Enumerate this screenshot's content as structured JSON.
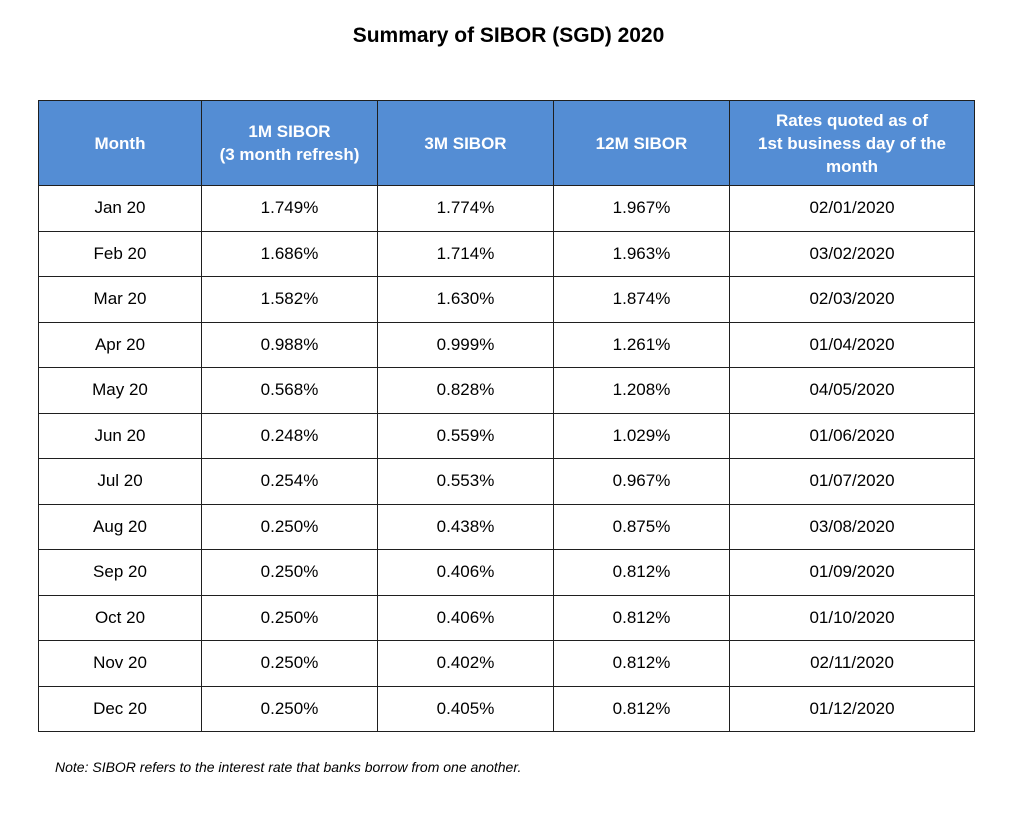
{
  "title": "Summary of SIBOR (SGD) 2020",
  "table": {
    "headers": [
      "Month",
      "1M SIBOR\n(3 month refresh)",
      "3M SIBOR",
      "12M SIBOR",
      "Rates quoted as of\n1st business day of the\nmonth"
    ],
    "rows": [
      [
        "Jan 20",
        "1.749%",
        "1.774%",
        "1.967%",
        "02/01/2020"
      ],
      [
        "Feb 20",
        "1.686%",
        "1.714%",
        "1.963%",
        "03/02/2020"
      ],
      [
        "Mar 20",
        "1.582%",
        "1.630%",
        "1.874%",
        "02/03/2020"
      ],
      [
        "Apr 20",
        "0.988%",
        "0.999%",
        "1.261%",
        "01/04/2020"
      ],
      [
        "May 20",
        "0.568%",
        "0.828%",
        "1.208%",
        "04/05/2020"
      ],
      [
        "Jun 20",
        "0.248%",
        "0.559%",
        "1.029%",
        "01/06/2020"
      ],
      [
        "Jul 20",
        "0.254%",
        "0.553%",
        "0.967%",
        "01/07/2020"
      ],
      [
        "Aug 20",
        "0.250%",
        "0.438%",
        "0.875%",
        "03/08/2020"
      ],
      [
        "Sep 20",
        "0.250%",
        "0.406%",
        "0.812%",
        "01/09/2020"
      ],
      [
        "Oct 20",
        "0.250%",
        "0.406%",
        "0.812%",
        "01/10/2020"
      ],
      [
        "Nov 20",
        "0.250%",
        "0.402%",
        "0.812%",
        "02/11/2020"
      ],
      [
        "Dec 20",
        "0.250%",
        "0.405%",
        "0.812%",
        "01/12/2020"
      ]
    ]
  },
  "note": "Note: SIBOR refers to the interest rate that banks borrow from one another.",
  "colors": {
    "header_background": "#548dd4",
    "header_text": "#ffffff",
    "border": "#1f1f1f"
  }
}
